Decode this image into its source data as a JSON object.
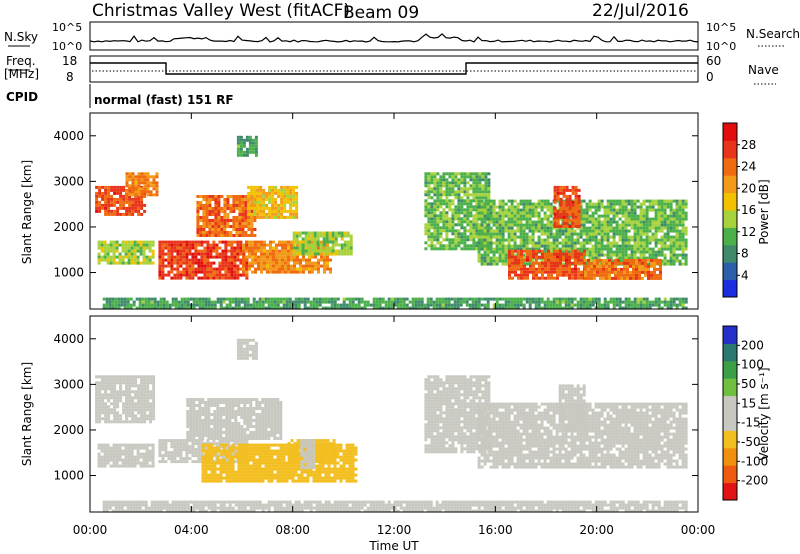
{
  "header": {
    "title": "Christmas Valley West (fitACF)",
    "beam": "Beam 09",
    "date": "22/Jul/2016"
  },
  "params_panel": {
    "nsky_label": "N.Sky",
    "nsky_ticks": [
      "10^5",
      "10^0"
    ],
    "nsearch_label": "N.Search",
    "nsearch_ticks": [
      "10^5",
      "10^0"
    ],
    "freq_label": "Freq.",
    "freq_unit": "[MHz]",
    "freq_ticks": [
      "18",
      "8"
    ],
    "nave_label": "Nave",
    "nave_ticks": [
      "60",
      "0"
    ],
    "cpid_label": "CPID",
    "cpid_text": "normal (fast) 151 RF"
  },
  "colors": {
    "power_scale": [
      "#1a2ee0",
      "#2d5ea8",
      "#3f8a6a",
      "#4bb04a",
      "#a8d23c",
      "#f2c200",
      "#f39a1a",
      "#f06a10",
      "#e83418",
      "#e20e0e"
    ],
    "velocity_scale": [
      "#e01414",
      "#ee5a10",
      "#f0900e",
      "#f2be20",
      "#c8c8c0",
      "#c8c8c0",
      "#70c040",
      "#3aa048",
      "#2a7870",
      "#2430c8"
    ]
  },
  "chart_data": [
    {
      "type": "heatmap",
      "name": "power",
      "ylabel": "Slant Range [km]",
      "yticks": [
        "1000",
        "2000",
        "3000",
        "4000"
      ],
      "colorbar_label": "Power [dB]",
      "colorbar_ticks": [
        "4",
        "8",
        "12",
        "16",
        "20",
        "24",
        "28"
      ],
      "ylim": [
        200,
        4500
      ],
      "xlim": [
        0,
        24
      ],
      "regions": [
        {
          "x": [
            0.2,
            2.2
          ],
          "y": [
            2300,
            2900
          ],
          "value": 26
        },
        {
          "x": [
            1.4,
            2.6
          ],
          "y": [
            2700,
            3200
          ],
          "value": 22
        },
        {
          "x": [
            0.3,
            2.5
          ],
          "y": [
            1200,
            1700
          ],
          "value": 14
        },
        {
          "x": [
            2.7,
            6.2
          ],
          "y": [
            900,
            1700
          ],
          "value": 27
        },
        {
          "x": [
            4.2,
            6.5
          ],
          "y": [
            1800,
            2700
          ],
          "value": 24
        },
        {
          "x": [
            6.2,
            8.2
          ],
          "y": [
            2200,
            2900
          ],
          "value": 18
        },
        {
          "x": [
            6.0,
            9.5
          ],
          "y": [
            1000,
            1700
          ],
          "value": 22
        },
        {
          "x": [
            8.0,
            10.3
          ],
          "y": [
            1400,
            1900
          ],
          "value": 14
        },
        {
          "x": [
            0.5,
            23.5
          ],
          "y": [
            250,
            450
          ],
          "value": 10
        },
        {
          "x": [
            13.2,
            15.8
          ],
          "y": [
            1500,
            3200
          ],
          "value": 12
        },
        {
          "x": [
            15.3,
            23.5
          ],
          "y": [
            1200,
            2600
          ],
          "value": 12
        },
        {
          "x": [
            16.5,
            19.5
          ],
          "y": [
            900,
            1500
          ],
          "value": 26
        },
        {
          "x": [
            18.3,
            19.3
          ],
          "y": [
            2000,
            2900
          ],
          "value": 26
        },
        {
          "x": [
            19.5,
            22.5
          ],
          "y": [
            900,
            1300
          ],
          "value": 24
        },
        {
          "x": [
            5.8,
            6.6
          ],
          "y": [
            3600,
            4000
          ],
          "value": 10
        }
      ]
    },
    {
      "type": "heatmap",
      "name": "velocity",
      "ylabel": "Slant Range [km]",
      "yticks": [
        "1000",
        "2000",
        "3000",
        "4000"
      ],
      "colorbar_label": "Velocity [m s⁻¹]",
      "colorbar_ticks": [
        "-200",
        "-100",
        "-50",
        "-15",
        "15",
        "50",
        "100",
        "200"
      ],
      "ylim": [
        200,
        4500
      ],
      "xlim": [
        0,
        24
      ],
      "regions": [
        {
          "x": [
            0.2,
            2.5
          ],
          "y": [
            2200,
            3200
          ],
          "value": 0
        },
        {
          "x": [
            0.3,
            2.5
          ],
          "y": [
            1200,
            1700
          ],
          "value": 0
        },
        {
          "x": [
            2.7,
            6.2
          ],
          "y": [
            1300,
            1800
          ],
          "value": 0
        },
        {
          "x": [
            3.8,
            7.5
          ],
          "y": [
            1800,
            2700
          ],
          "value": 0
        },
        {
          "x": [
            4.4,
            10.5
          ],
          "y": [
            900,
            1700
          ],
          "value": -60
        },
        {
          "x": [
            7.8,
            9.6
          ],
          "y": [
            1300,
            1800
          ],
          "value": -80
        },
        {
          "x": [
            8.3,
            8.8
          ],
          "y": [
            1200,
            1800
          ],
          "value": 30
        },
        {
          "x": [
            0.5,
            23.5
          ],
          "y": [
            250,
            450
          ],
          "value": 25
        },
        {
          "x": [
            13.2,
            15.8
          ],
          "y": [
            1500,
            3200
          ],
          "value": 0
        },
        {
          "x": [
            15.3,
            23.5
          ],
          "y": [
            1200,
            2600
          ],
          "value": 0
        },
        {
          "x": [
            18.5,
            19.5
          ],
          "y": [
            2000,
            3000
          ],
          "value": 0
        },
        {
          "x": [
            5.8,
            6.6
          ],
          "y": [
            3600,
            4000
          ],
          "value": 0
        }
      ]
    }
  ],
  "x_axis": {
    "ticks": [
      "00:00",
      "04:00",
      "08:00",
      "12:00",
      "16:00",
      "20:00",
      "00:00"
    ],
    "label": "Time UT"
  }
}
